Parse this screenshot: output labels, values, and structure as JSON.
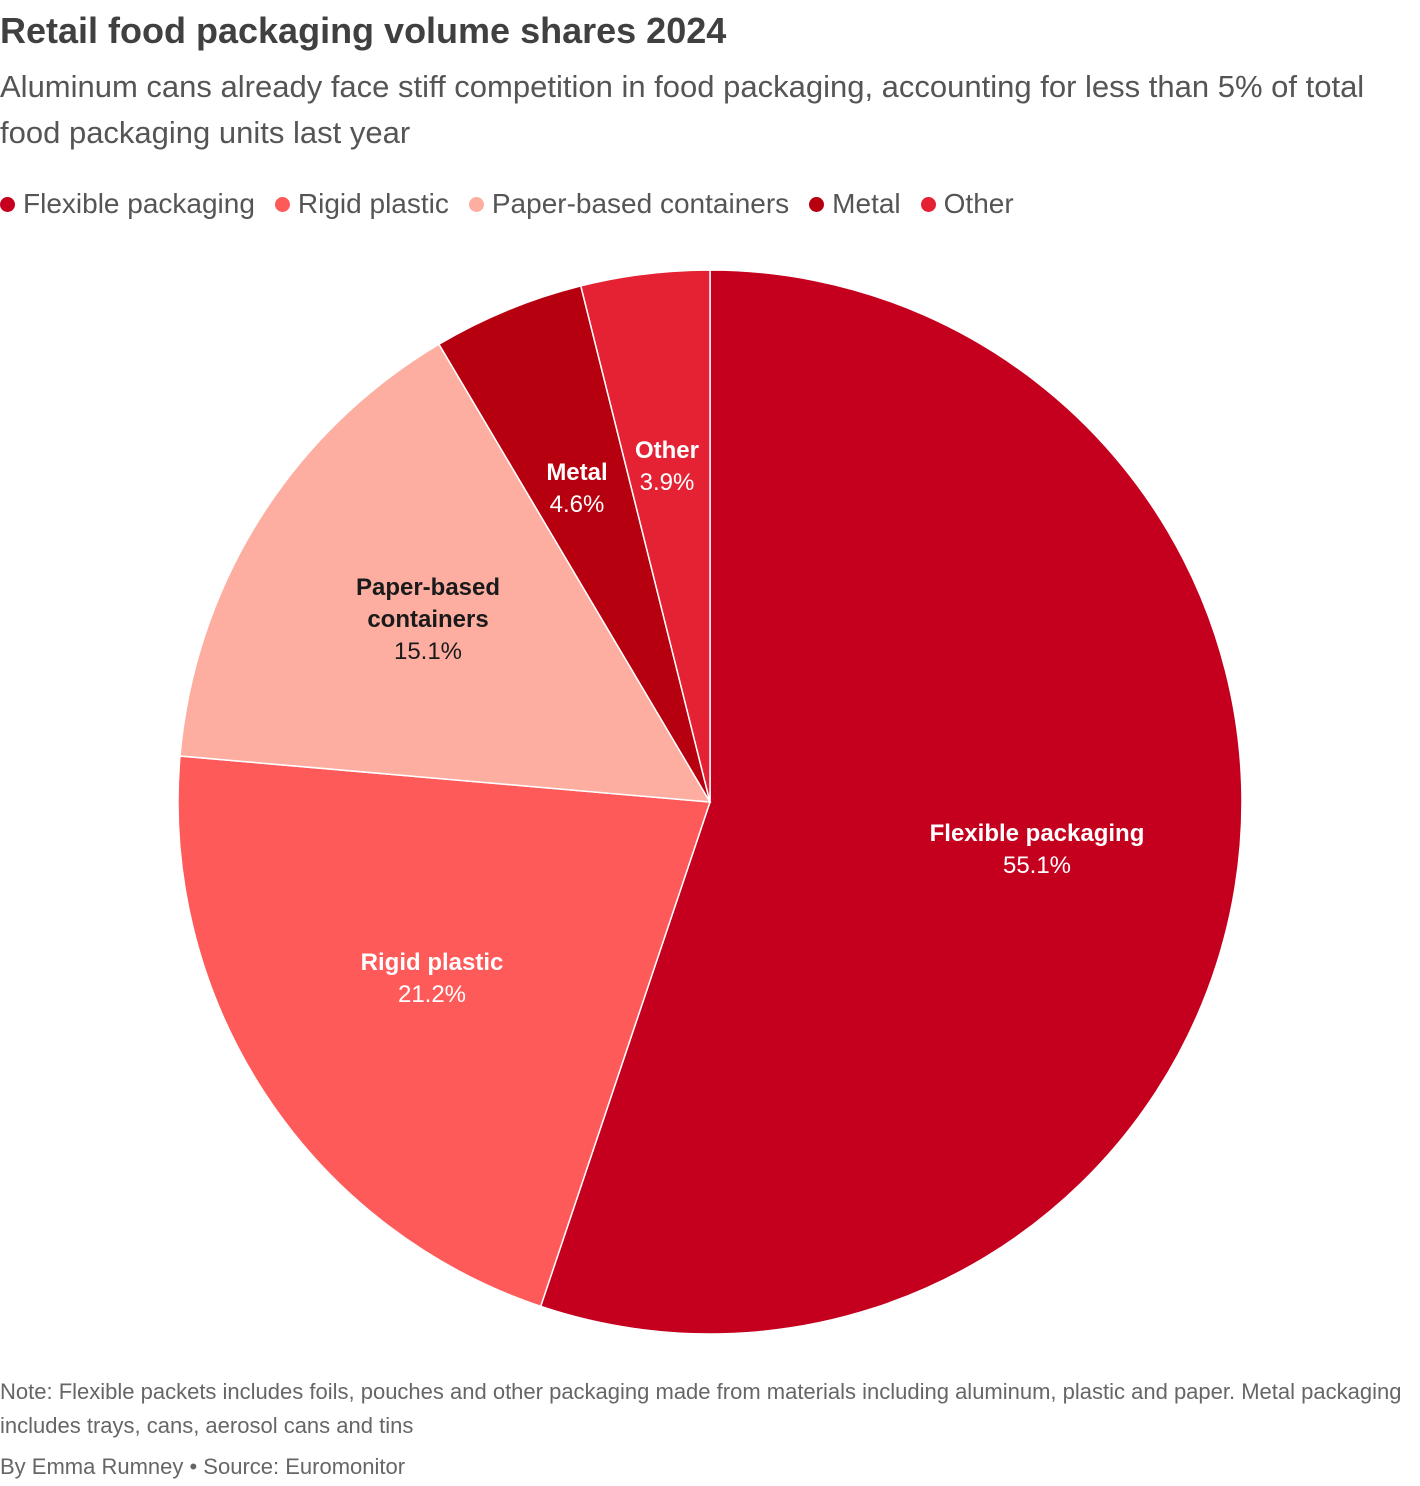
{
  "header": {
    "title": "Retail food packaging volume shares 2024",
    "subtitle": "Aluminum cans already face stiff competition in food packaging, accounting for less than 5% of total food packaging units last year"
  },
  "legend": {
    "items": [
      {
        "label": "Flexible packaging",
        "color": "#c4001e"
      },
      {
        "label": "Rigid plastic",
        "color": "#ff5a5a"
      },
      {
        "label": "Paper-based containers",
        "color": "#fdaea1"
      },
      {
        "label": "Metal",
        "color": "#b7000f"
      },
      {
        "label": "Other",
        "color": "#e52233"
      }
    ]
  },
  "chart_data": {
    "type": "pie",
    "title": "Retail food packaging volume shares 2024",
    "unit": "%",
    "slices": [
      {
        "name": "Flexible packaging",
        "label_lines": [
          "Flexible packaging"
        ],
        "value": 55.1,
        "value_label": "55.1%",
        "color": "#c4001e",
        "label_color": "#ffffff"
      },
      {
        "name": "Rigid plastic",
        "label_lines": [
          "Rigid plastic"
        ],
        "value": 21.2,
        "value_label": "21.2%",
        "color": "#ff5a5a",
        "label_color": "#ffffff"
      },
      {
        "name": "Paper-based containers",
        "label_lines": [
          "Paper-based",
          "containers"
        ],
        "value": 15.1,
        "value_label": "15.1%",
        "color": "#fdaea1",
        "label_color": "#1a1a1a"
      },
      {
        "name": "Metal",
        "label_lines": [
          "Metal"
        ],
        "value": 4.6,
        "value_label": "4.6%",
        "color": "#b7000f",
        "label_color": "#ffffff"
      },
      {
        "name": "Other",
        "label_lines": [
          "Other"
        ],
        "value": 3.9,
        "value_label": "3.9%",
        "color": "#e52233",
        "label_color": "#ffffff"
      }
    ]
  },
  "footer": {
    "note": "Note: Flexible packets includes foils, pouches and other packaging made from materials including aluminum, plastic and paper. Metal packaging includes trays, cans, aerosol cans and tins",
    "credit": "By Emma Rumney • Source: Euromonitor"
  }
}
